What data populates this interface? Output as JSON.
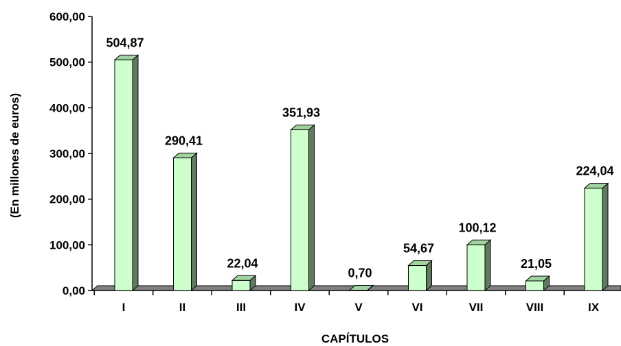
{
  "chart_data": {
    "type": "bar",
    "style": "3d-column",
    "bar_color": "#ccffcc",
    "bar_side_color": "#5f7a5f",
    "bar_top_color": "#9fd39f",
    "floor_color": "#808080",
    "categories": [
      "I",
      "II",
      "III",
      "IV",
      "V",
      "VI",
      "VII",
      "VIII",
      "IX"
    ],
    "values": [
      504.87,
      290.41,
      22.04,
      351.93,
      0.7,
      54.67,
      100.12,
      21.05,
      224.04
    ],
    "value_labels": [
      "504,87",
      "290,41",
      "22,04",
      "351,93",
      "0,70",
      "54,67",
      "100,12",
      "21,05",
      "224,04"
    ],
    "xlabel": "CAPÍTULOS",
    "ylabel": "(En millones de euros)",
    "ylim": [
      0,
      600
    ],
    "yticks": [
      0,
      100,
      200,
      300,
      400,
      500,
      600
    ],
    "ytick_labels": [
      "0,00",
      "100,00",
      "200,00",
      "300,00",
      "400,00",
      "500,00",
      "600,00"
    ],
    "grid": false,
    "legend": "none"
  }
}
